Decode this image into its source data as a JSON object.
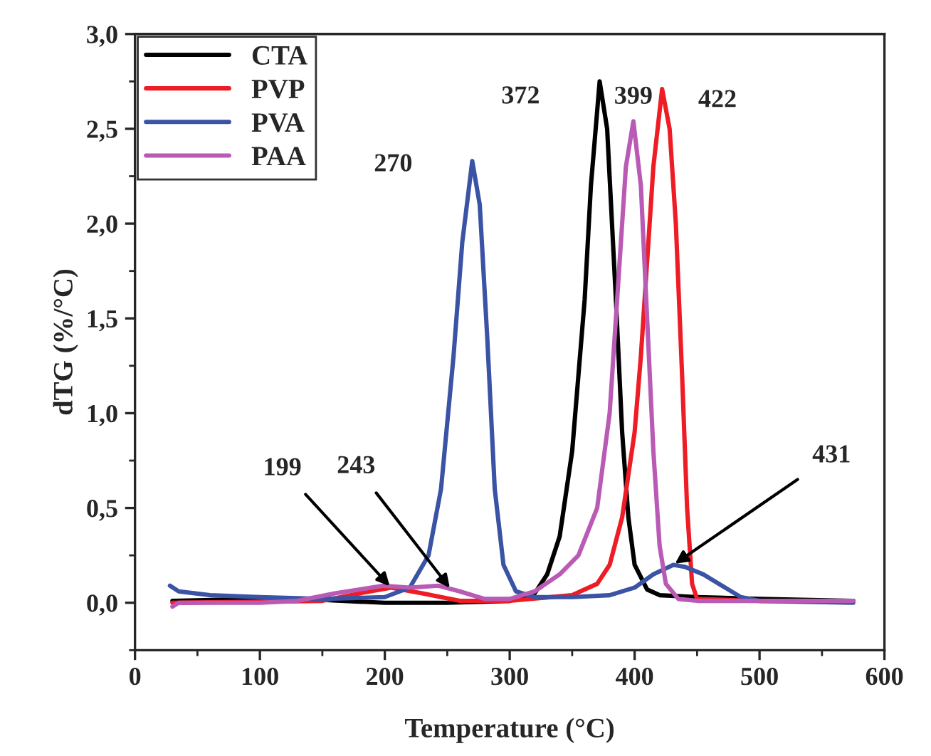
{
  "chart_data": {
    "type": "line",
    "xlabel": "Temperature (°C)",
    "ylabel": "dTG (%/°C)",
    "xlim": [
      0,
      600
    ],
    "xticks": [
      0,
      100,
      200,
      300,
      400,
      500,
      600
    ],
    "ylim": [
      -0.25,
      3.0
    ],
    "yticks": [
      {
        "value": 0,
        "label": "0,0"
      },
      {
        "value": 0.5,
        "label": "0,5"
      },
      {
        "value": 1.0,
        "label": "1,0"
      },
      {
        "value": 1.5,
        "label": "1,5"
      },
      {
        "value": 2.0,
        "label": "2,0"
      },
      {
        "value": 2.5,
        "label": "2,5"
      },
      {
        "value": 3.0,
        "label": "3,0"
      }
    ],
    "legend": "top left",
    "grid": false,
    "marker": "none",
    "line_style": "solid",
    "series": [
      {
        "name": "CTA",
        "color": "#000000",
        "x": [
          30,
          100,
          150,
          200,
          250,
          300,
          320,
          330,
          340,
          350,
          360,
          365,
          372,
          378,
          385,
          390,
          395,
          400,
          410,
          420,
          450,
          500,
          575
        ],
        "values": [
          0.01,
          0.02,
          0.015,
          0.0,
          0.0,
          0.01,
          0.05,
          0.15,
          0.35,
          0.8,
          1.6,
          2.2,
          2.75,
          2.5,
          1.6,
          0.9,
          0.45,
          0.2,
          0.07,
          0.04,
          0.03,
          0.02,
          0.01
        ]
      },
      {
        "name": "PVP",
        "color": "#ee1c25",
        "x": [
          30,
          150,
          180,
          205,
          230,
          260,
          300,
          350,
          370,
          380,
          390,
          400,
          405,
          410,
          415,
          422,
          428,
          433,
          438,
          442,
          446,
          450,
          500,
          575
        ],
        "values": [
          0.0,
          0.01,
          0.05,
          0.08,
          0.05,
          0.01,
          0.01,
          0.04,
          0.1,
          0.2,
          0.45,
          0.9,
          1.3,
          1.8,
          2.3,
          2.71,
          2.5,
          2.0,
          1.2,
          0.5,
          0.1,
          0.02,
          0.01,
          0.01
        ]
      },
      {
        "name": "PVA",
        "color": "#3a53a4",
        "x": [
          28,
          35,
          60,
          100,
          150,
          200,
          220,
          235,
          245,
          255,
          262,
          270,
          276,
          282,
          288,
          295,
          305,
          320,
          350,
          380,
          400,
          415,
          431,
          440,
          455,
          470,
          485,
          500,
          575
        ],
        "values": [
          0.09,
          0.06,
          0.04,
          0.03,
          0.02,
          0.03,
          0.08,
          0.25,
          0.6,
          1.3,
          1.9,
          2.33,
          2.1,
          1.4,
          0.6,
          0.2,
          0.06,
          0.03,
          0.03,
          0.04,
          0.08,
          0.15,
          0.2,
          0.19,
          0.15,
          0.09,
          0.03,
          0.01,
          0.0
        ]
      },
      {
        "name": "PAA",
        "color": "#b95ab4",
        "x": [
          30,
          35,
          100,
          130,
          160,
          199,
          220,
          243,
          260,
          280,
          300,
          320,
          340,
          355,
          370,
          380,
          388,
          393,
          399,
          405,
          410,
          415,
          420,
          425,
          435,
          450,
          575
        ],
        "values": [
          -0.02,
          0.0,
          0.0,
          0.01,
          0.05,
          0.09,
          0.08,
          0.09,
          0.06,
          0.02,
          0.02,
          0.06,
          0.15,
          0.25,
          0.5,
          1.0,
          1.8,
          2.3,
          2.54,
          2.2,
          1.5,
          0.8,
          0.3,
          0.1,
          0.02,
          0.01,
          0.01
        ]
      }
    ],
    "annotations": [
      {
        "text": "270",
        "x": 270,
        "y": 2.33
      },
      {
        "text": "372",
        "x": 372,
        "y": 2.75
      },
      {
        "text": "399",
        "x": 399,
        "y": 2.54
      },
      {
        "text": "422",
        "x": 422,
        "y": 2.71
      },
      {
        "text": "199",
        "x": 205,
        "y": 0.08
      },
      {
        "text": "243",
        "x": 253,
        "y": 0.07
      },
      {
        "text": "431",
        "x": 431,
        "y": 0.2
      }
    ]
  }
}
